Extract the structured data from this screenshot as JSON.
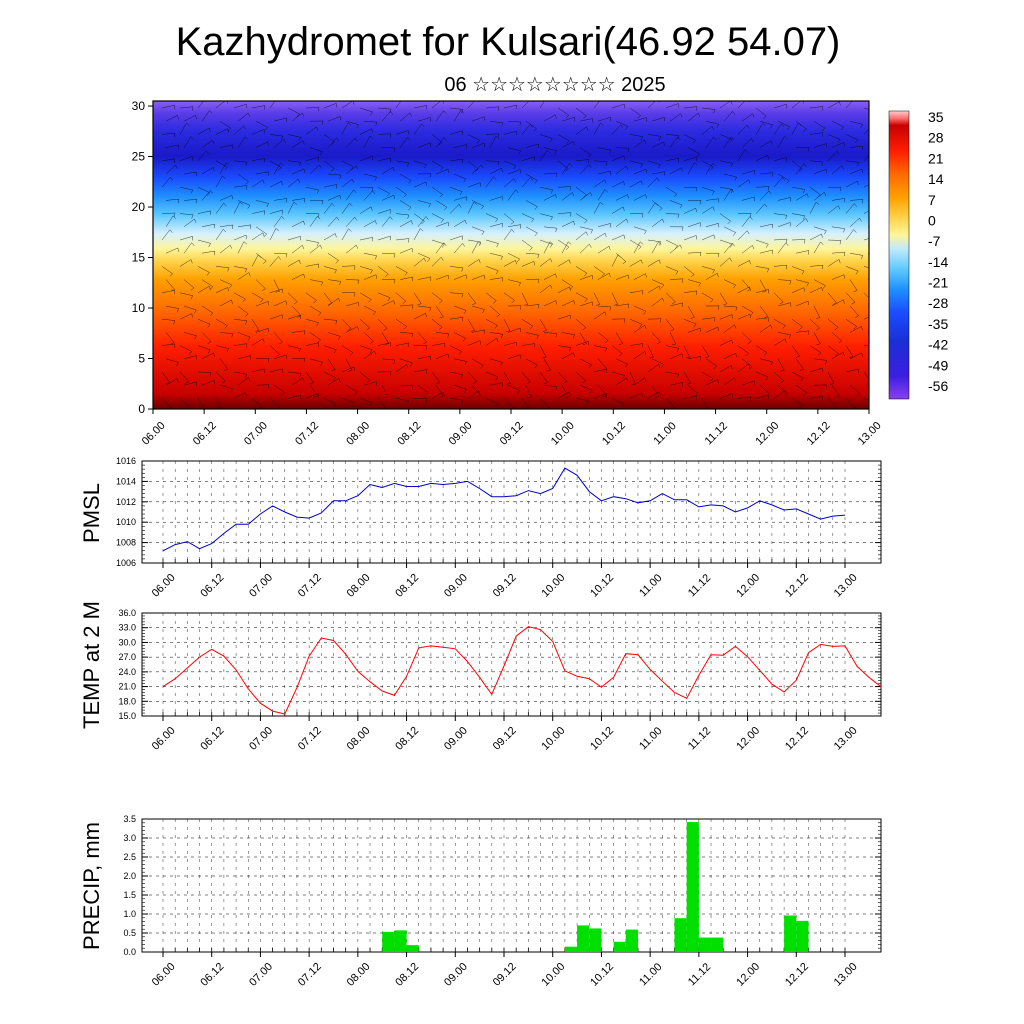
{
  "title": "Kazhydromet for Kulsari(46.92 54.07)",
  "subtitle": "06 ☆☆☆☆☆☆☆☆ 2025",
  "x_tick_labels": [
    "06.00",
    "06.12",
    "07.00",
    "07.12",
    "08.00",
    "08.12",
    "09.00",
    "09.12",
    "10.00",
    "10.12",
    "11.00",
    "11.12",
    "12.00",
    "12.12",
    "13.00"
  ],
  "chart_data": [
    {
      "type": "heatmap",
      "x": [
        "06.00",
        "06.12",
        "07.00",
        "07.12",
        "08.00",
        "08.12",
        "09.00",
        "09.12",
        "10.00",
        "10.12",
        "11.00",
        "11.12",
        "12.00",
        "12.12",
        "13.00"
      ],
      "y_tick_labels": [
        "0",
        "5",
        "10",
        "15",
        "20",
        "25",
        "30"
      ],
      "ylim": [
        0,
        30.5
      ],
      "colorbar_labels": [
        "35",
        "28",
        "21",
        "14",
        "7",
        "0",
        "-7",
        "-14",
        "-21",
        "-28",
        "-35",
        "-42",
        "-49",
        "-56"
      ],
      "colorscale": [
        "#5a0a0a",
        "#c80000",
        "#ff1e00",
        "#ff6a00",
        "#ffa000",
        "#ffd24a",
        "#fff59a",
        "#bfe9ff",
        "#5ec8ff",
        "#1e90ff",
        "#1a4dff",
        "#1a2fd6",
        "#3b1ee0",
        "#8a40f0",
        "#e8e8ff"
      ],
      "grid": false,
      "legend": "right"
    },
    {
      "type": "line",
      "ylabel": "PMSL",
      "ylim": [
        1006,
        1016
      ],
      "y_tick_labels": [
        "1006",
        "1008",
        "1010",
        "1012",
        "1014",
        "1016"
      ],
      "color": "#0000cc",
      "grid": true,
      "series": [
        {
          "values": [
            1007.2,
            1007.8,
            1008.1,
            1007.4,
            1007.9,
            1008.9,
            1009.8,
            1009.8,
            1010.8,
            1011.6,
            1011.0,
            1010.5,
            1010.4,
            1010.9,
            1012.1,
            1012.1,
            1012.6,
            1013.7,
            1013.4,
            1013.8,
            1013.5,
            1013.5,
            1013.8,
            1013.7,
            1013.8,
            1014.0,
            1013.3,
            1012.5,
            1012.5,
            1012.6,
            1013.1,
            1012.8,
            1013.3,
            1015.3,
            1014.6,
            1013.0,
            1012.1,
            1012.5,
            1012.3,
            1011.9,
            1012.1,
            1012.8,
            1012.2,
            1012.2,
            1011.5,
            1011.7,
            1011.6,
            1011.0,
            1011.4,
            1012.1,
            1011.7,
            1011.2,
            1011.3,
            1010.8,
            1010.3,
            1010.6,
            1010.7
          ]
        }
      ],
      "x_start_index": 0,
      "x_step_hours": 3
    },
    {
      "type": "line",
      "ylabel": "TEMP at 2 M",
      "ylim": [
        15.0,
        36.0
      ],
      "y_tick_labels": [
        "15.0",
        "18.0",
        "21.0",
        "24.0",
        "27.0",
        "30.0",
        "33.0",
        "36.0"
      ],
      "color": "#ff0000",
      "grid": true,
      "series": [
        {
          "values": [
            21.0,
            22.6,
            24.8,
            27.0,
            28.6,
            27.2,
            24.4,
            20.5,
            17.6,
            16.0,
            15.4,
            20.8,
            27.2,
            30.9,
            30.4,
            27.6,
            24.1,
            22.0,
            20.1,
            19.2,
            23.1,
            28.9,
            29.3,
            29.0,
            28.7,
            26.1,
            22.9,
            19.4,
            25.2,
            31.3,
            33.2,
            32.6,
            30.2,
            24.2,
            23.1,
            22.6,
            20.9,
            22.9,
            27.7,
            27.5,
            24.5,
            22.1,
            19.8,
            18.6,
            23.3,
            27.5,
            27.4,
            29.2,
            27.1,
            24.3,
            21.5,
            19.9,
            22.3,
            27.9,
            29.6,
            29.2,
            29.3,
            25.1,
            22.8,
            20.9
          ]
        }
      ],
      "x_step_hours": 3
    },
    {
      "type": "bar",
      "ylabel": "PRECIP, mm",
      "ylim": [
        0.0,
        3.5
      ],
      "y_tick_labels": [
        "0.0",
        "0.5",
        "1.0",
        "1.5",
        "2.0",
        "2.5",
        "3.0",
        "3.5"
      ],
      "color": "#00e000",
      "grid": true,
      "bars": [
        {
          "x_index": 18,
          "value": 0.53
        },
        {
          "x_index": 19,
          "value": 0.57
        },
        {
          "x_index": 20,
          "value": 0.18
        },
        {
          "x_index": 33,
          "value": 0.14
        },
        {
          "x_index": 34,
          "value": 0.7
        },
        {
          "x_index": 35,
          "value": 0.62
        },
        {
          "x_index": 37,
          "value": 0.27
        },
        {
          "x_index": 38,
          "value": 0.59
        },
        {
          "x_index": 42,
          "value": 0.89
        },
        {
          "x_index": 43,
          "value": 3.42
        },
        {
          "x_index": 44,
          "value": 0.38
        },
        {
          "x_index": 45,
          "value": 0.38
        },
        {
          "x_index": 51,
          "value": 0.96
        },
        {
          "x_index": 52,
          "value": 0.82
        }
      ],
      "x_step_hours": 3
    }
  ]
}
